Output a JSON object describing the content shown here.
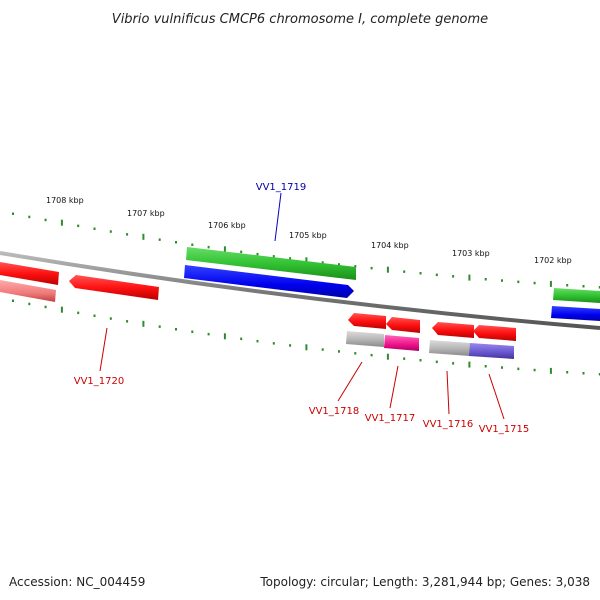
{
  "title": "Vibrio vulnificus CMCP6 chromosome I, complete genome",
  "footer": {
    "accession": "Accession: NC_004459",
    "topology": "Topology: circular; Length: 3,281,944 bp; Genes: 3,038"
  },
  "colors": {
    "backbone": "#808080",
    "tick": "#2e8b2e",
    "forward_cds": "#22bb22",
    "forward_gene": "#0000ff",
    "reverse_gene": "#ff0000",
    "reverse_cds_plain": "#aaaaaa",
    "reverse_cds_pink": "#ee1188",
    "reverse_cds_purple": "#6655cc",
    "forward_label": "#0000aa",
    "reverse_label": "#cc0000"
  },
  "scale_labels": [
    "1708 kbp",
    "1707 kbp",
    "1706 kbp",
    "1705 kbp",
    "1704 kbp",
    "1703 kbp",
    "1702 kbp"
  ],
  "gene_labels": [
    {
      "text": "VV1_1719",
      "strand": "forward"
    },
    {
      "text": "VV1_1720",
      "strand": "reverse"
    },
    {
      "text": "VV1_1718",
      "strand": "reverse"
    },
    {
      "text": "VV1_1717",
      "strand": "reverse"
    },
    {
      "text": "VV1_1716",
      "strand": "reverse"
    },
    {
      "text": "VV1_1715",
      "strand": "reverse"
    }
  ]
}
